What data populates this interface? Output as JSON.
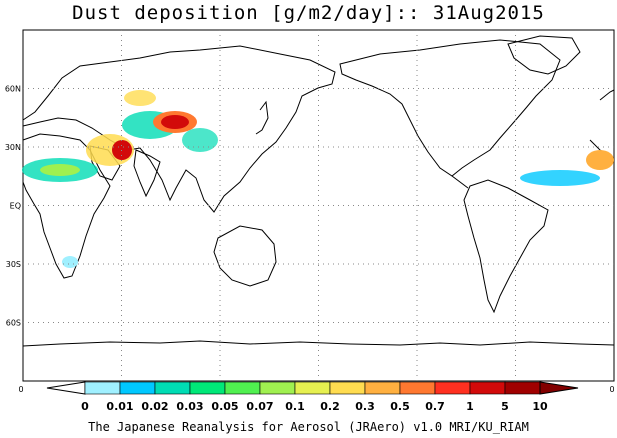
{
  "title": "Dust deposition [g/m2/day]:: 31Aug2015",
  "credit": "The Japanese Reanalysis for Aerosol (JRAero) v1.0 MRI/KU_RIAM",
  "lat_labels": [
    "60N",
    "30N",
    "EQ",
    "30S",
    "60S"
  ],
  "lat_values": [
    60,
    30,
    0,
    -30,
    -60
  ],
  "map_lat_range": [
    -90,
    90
  ],
  "map_lon_range": [
    0,
    360
  ],
  "lon_gridlines": [
    60,
    120,
    180,
    240,
    300
  ],
  "colorbar": {
    "edge_left": "0",
    "edge_right": "0",
    "labels": [
      "0",
      "0.01",
      "0.02",
      "0.03",
      "0.05",
      "0.07",
      "0.1",
      "0.2",
      "0.3",
      "0.5",
      "0.7",
      "1",
      "5",
      "10"
    ],
    "colors": [
      "#ffffff",
      "#a0f0ff",
      "#00c8ff",
      "#00dcb4",
      "#00e878",
      "#50f050",
      "#a0f050",
      "#e6f050",
      "#ffdc50",
      "#ffb040",
      "#ff7830",
      "#ff3020",
      "#d20a0a",
      "#a00000",
      "#820000"
    ]
  }
}
